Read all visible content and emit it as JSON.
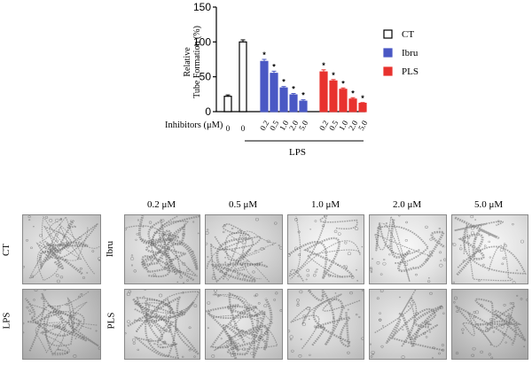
{
  "chart_data": {
    "type": "bar",
    "ylabel": "Relative\nTube Formation (%)",
    "ylim": [
      0,
      150
    ],
    "yticks": [
      0,
      50,
      100,
      150
    ],
    "xlabel_prefix": "Inhibitors (μM)",
    "group_label": "LPS",
    "categories": [
      "0",
      "0",
      "0.2",
      "0.5",
      "1.0",
      "2.0",
      "5.0",
      "0.2",
      "0.5",
      "1.0",
      "2.0",
      "5.0"
    ],
    "series": [
      {
        "name": "CT",
        "color": "#ffffff",
        "stroke": "#000000",
        "values": [
          22,
          100,
          null,
          null,
          null,
          null,
          null,
          null,
          null,
          null,
          null,
          null
        ],
        "errors": [
          2,
          3,
          null,
          null,
          null,
          null,
          null,
          null,
          null,
          null,
          null,
          null
        ]
      },
      {
        "name": "Ibru",
        "color": "#4a58c4",
        "stroke": "#4a58c4",
        "values": [
          null,
          null,
          72,
          55,
          34,
          24,
          15,
          null,
          null,
          null,
          null,
          null
        ],
        "errors": [
          null,
          null,
          3,
          3,
          2,
          2,
          2,
          null,
          null,
          null,
          null,
          null
        ]
      },
      {
        "name": "PLS",
        "color": "#e8322e",
        "stroke": "#e8322e",
        "values": [
          null,
          null,
          null,
          null,
          null,
          null,
          null,
          57,
          44,
          32,
          18,
          12
        ],
        "errors": [
          null,
          null,
          null,
          null,
          null,
          null,
          null,
          3,
          2,
          2,
          2,
          1
        ]
      }
    ],
    "significance_marker": "*",
    "legend_position": "right"
  },
  "panels": {
    "column_headers": [
      "0.2 μM",
      "0.5 μM",
      "1.0 μM",
      "2.0 μM",
      "5.0 μM"
    ],
    "control_labels": [
      "CT",
      "LPS"
    ],
    "treatment_labels": [
      "Ibru",
      "PLS"
    ]
  }
}
